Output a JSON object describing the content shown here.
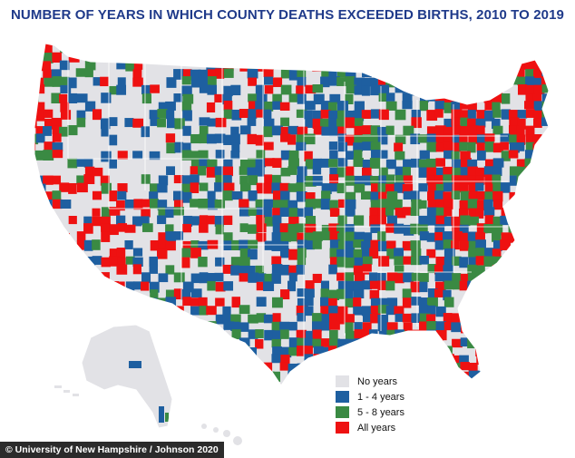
{
  "title": "NUMBER OF YEARS IN WHICH COUNTY DEATHS EXCEEDED BIRTHS, 2010 TO 2019",
  "legend": [
    {
      "label": "No years",
      "color": "#e2e2e6"
    },
    {
      "label": "1 - 4 years",
      "color": "#1e5fa0"
    },
    {
      "label": "5 - 8 years",
      "color": "#3a8a43"
    },
    {
      "label": "All years",
      "color": "#ee1111"
    }
  ],
  "credit": "© University of New Hampshire / Johnson 2020",
  "colors": {
    "border": "#ffffff",
    "ocean": "#ffffff"
  }
}
